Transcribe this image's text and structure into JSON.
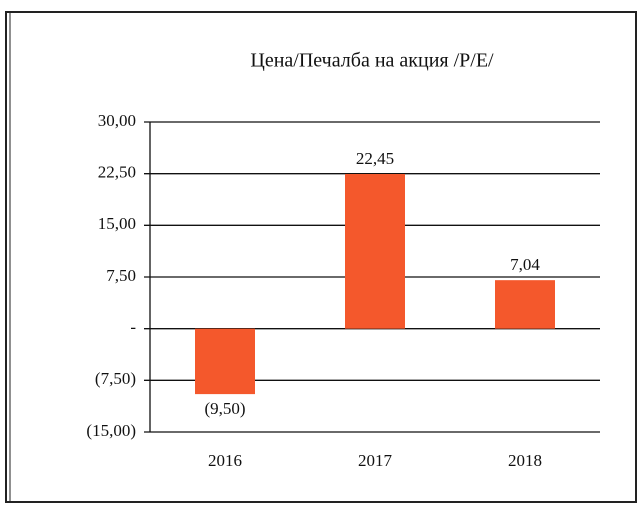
{
  "chart_data": {
    "type": "bar",
    "title": "Цена/Печалба на акция /P/E/",
    "categories": [
      "2016",
      "2017",
      "2018"
    ],
    "values": [
      -9.5,
      22.45,
      7.04
    ],
    "value_labels": [
      "(9,50)",
      "22,45",
      "7,04"
    ],
    "color": "#f4582c",
    "ylim": [
      -15,
      30
    ],
    "yticks": [
      {
        "value": -15,
        "label": "(15,00)"
      },
      {
        "value": -7.5,
        "label": "(7,50)"
      },
      {
        "value": 0,
        "label": "-"
      },
      {
        "value": 7.5,
        "label": "7,50"
      },
      {
        "value": 15,
        "label": "15,00"
      },
      {
        "value": 22.5,
        "label": "22,50"
      },
      {
        "value": 30,
        "label": "30,00"
      }
    ],
    "grid": true
  }
}
